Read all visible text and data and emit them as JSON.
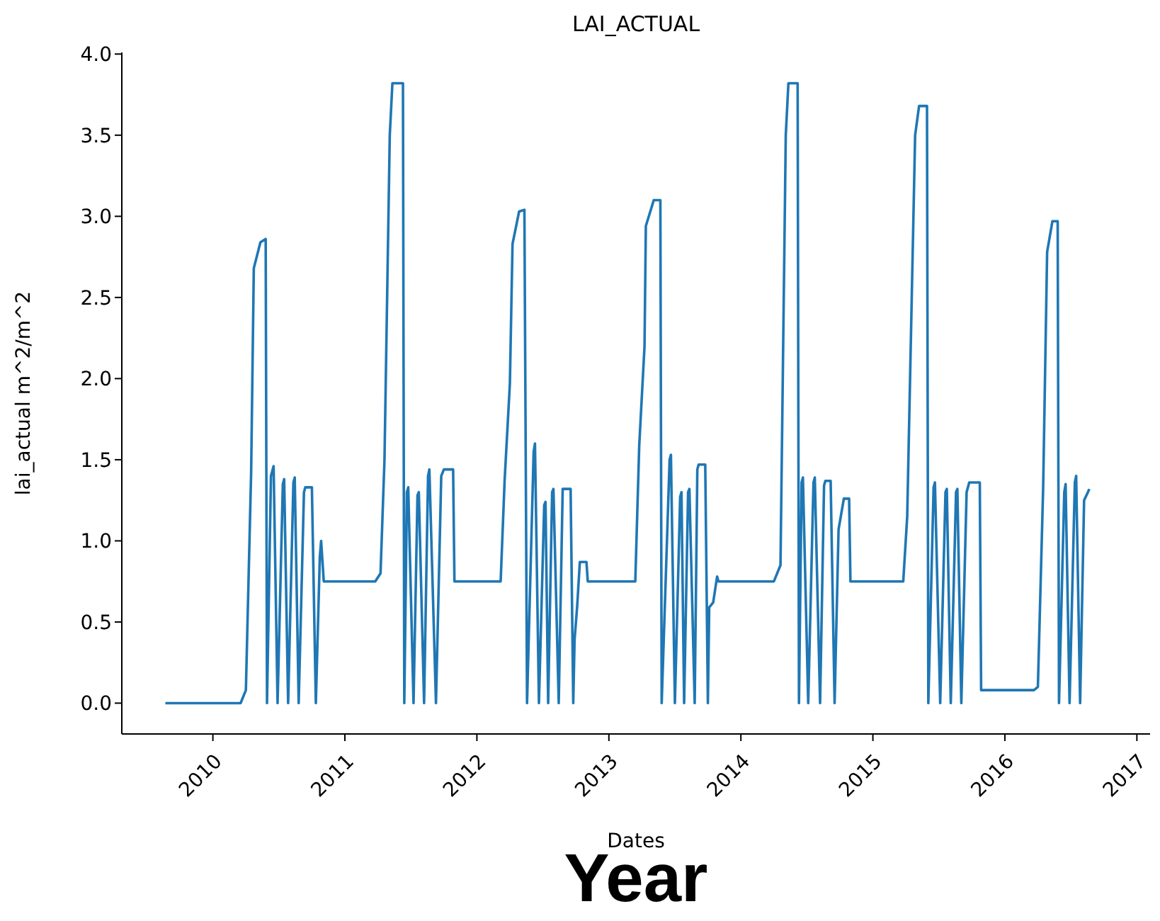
{
  "chart_data": {
    "type": "line",
    "title": "LAI_ACTUAL",
    "xlabel": "Dates",
    "ylabel": "lai_actual m^2/m^2",
    "annotations": [
      "Year"
    ],
    "xlim": [
      2009.31,
      2017.1
    ],
    "xticks": [
      2010,
      2011,
      2012,
      2013,
      2014,
      2015,
      2016,
      2017
    ],
    "ylim": [
      -0.19,
      4.01
    ],
    "yticks": [
      {
        "value": 0,
        "label": "0.0"
      },
      {
        "value": 0.5,
        "label": "0.5"
      },
      {
        "value": 1,
        "label": "1.0"
      },
      {
        "value": 1.5,
        "label": "1.5"
      },
      {
        "value": 2,
        "label": "2.0"
      },
      {
        "value": 2.5,
        "label": "2.5"
      },
      {
        "value": 3,
        "label": "3.0"
      },
      {
        "value": 3.5,
        "label": "3.5"
      },
      {
        "value": 4,
        "label": "4.0"
      }
    ],
    "series": [
      {
        "color": "#1f77b4",
        "x": [
          2009.64,
          2010.21,
          2010.25,
          2010.29,
          2010.31,
          2010.36,
          2010.4,
          2010.41,
          2010.44,
          2010.46,
          2010.49,
          2010.53,
          2010.54,
          2010.57,
          2010.61,
          2010.62,
          2010.65,
          2010.69,
          2010.7,
          2010.75,
          2010.78,
          2010.81,
          2010.82,
          2010.84,
          2011.23,
          2011.27,
          2011.3,
          2011.34,
          2011.36,
          2011.44,
          2011.45,
          2011.47,
          2011.48,
          2011.52,
          2011.55,
          2011.56,
          2011.6,
          2011.63,
          2011.64,
          2011.69,
          2011.73,
          2011.75,
          2011.82,
          2011.83,
          2012.18,
          2012.21,
          2012.25,
          2012.27,
          2012.32,
          2012.36,
          2012.38,
          2012.43,
          2012.44,
          2012.47,
          2012.51,
          2012.52,
          2012.54,
          2012.57,
          2012.58,
          2012.62,
          2012.65,
          2012.71,
          2012.73,
          2012.74,
          2012.76,
          2012.78,
          2012.83,
          2012.84,
          2013.2,
          2013.23,
          2013.27,
          2013.28,
          2013.34,
          2013.39,
          2013.4,
          2013.46,
          2013.47,
          2013.5,
          2013.54,
          2013.55,
          2013.57,
          2013.6,
          2013.61,
          2013.65,
          2013.67,
          2013.68,
          2013.73,
          2013.75,
          2013.76,
          2013.79,
          2013.82,
          2013.83,
          2014.25,
          2014.3,
          2014.34,
          2014.36,
          2014.43,
          2014.44,
          2014.46,
          2014.47,
          2014.51,
          2014.55,
          2014.56,
          2014.6,
          2014.63,
          2014.64,
          2014.68,
          2014.71,
          2014.74,
          2014.78,
          2014.82,
          2014.83,
          2015.23,
          2015.26,
          2015.32,
          2015.35,
          2015.41,
          2015.42,
          2015.46,
          2015.47,
          2015.51,
          2015.55,
          2015.56,
          2015.59,
          2015.63,
          2015.64,
          2015.67,
          2015.71,
          2015.73,
          2015.81,
          2015.82,
          2016.22,
          2016.25,
          2016.29,
          2016.32,
          2016.36,
          2016.4,
          2016.41,
          2016.45,
          2016.46,
          2016.49,
          2016.53,
          2016.54,
          2016.57,
          2016.6,
          2016.64
        ],
        "values": [
          0,
          0,
          0.08,
          1.43,
          2.68,
          2.84,
          2.86,
          0,
          1.4,
          1.46,
          0,
          1.35,
          1.38,
          0,
          1.36,
          1.39,
          0,
          1.3,
          1.33,
          1.33,
          0,
          0.9,
          1.0,
          0.75,
          0.75,
          0.8,
          1.5,
          3.5,
          3.82,
          3.82,
          0,
          1.3,
          1.33,
          0,
          1.28,
          1.3,
          0,
          1.4,
          1.44,
          0,
          1.4,
          1.44,
          1.44,
          0.75,
          0.75,
          1.37,
          1.97,
          2.83,
          3.03,
          3.04,
          0,
          1.55,
          1.6,
          0,
          1.22,
          1.24,
          0,
          1.3,
          1.32,
          0,
          1.32,
          1.32,
          0,
          0.39,
          0.6,
          0.87,
          0.87,
          0.75,
          0.75,
          1.59,
          2.2,
          2.94,
          3.1,
          3.1,
          0,
          1.5,
          1.53,
          0,
          1.27,
          1.3,
          0,
          1.3,
          1.32,
          0,
          1.44,
          1.47,
          1.47,
          0,
          0.59,
          0.62,
          0.78,
          0.75,
          0.75,
          0.85,
          3.5,
          3.82,
          3.82,
          0,
          1.36,
          1.39,
          0,
          1.36,
          1.39,
          0,
          1.34,
          1.37,
          1.37,
          0,
          1.07,
          1.26,
          1.26,
          0.75,
          0.75,
          1.15,
          3.5,
          3.68,
          3.68,
          0,
          1.33,
          1.36,
          0,
          1.3,
          1.32,
          0,
          1.3,
          1.32,
          0,
          1.3,
          1.36,
          1.36,
          0.08,
          0.08,
          0.1,
          1.33,
          2.78,
          2.97,
          2.97,
          0,
          1.3,
          1.35,
          0,
          1.36,
          1.4,
          0,
          1.25,
          1.32
        ]
      }
    ]
  }
}
